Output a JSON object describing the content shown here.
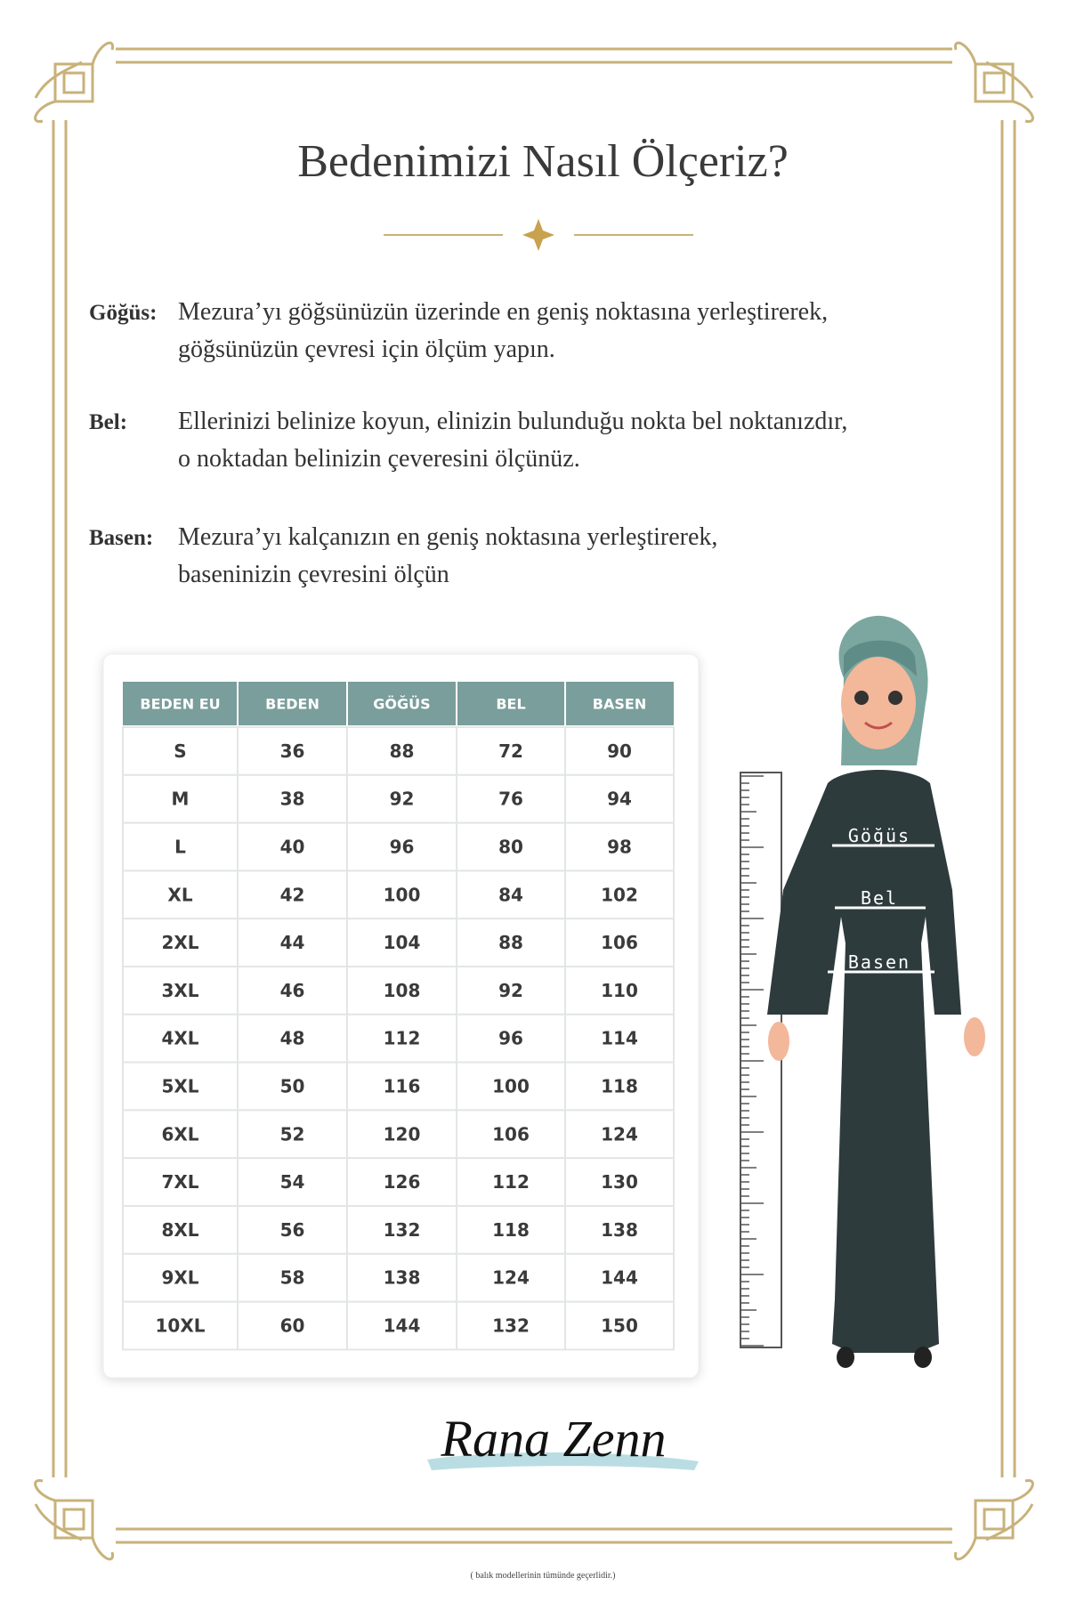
{
  "title": "Bedenimizi Nasıl Ölçeriz?",
  "definitions": [
    {
      "term": "Göğüs:",
      "lines": [
        "Mezura’yı göğsünüzün üzerinde en geniş noktasına yerleştirerek,",
        "göğsünüzün çevresi için ölçüm yapın."
      ]
    },
    {
      "term": "Bel:",
      "lines": [
        "Ellerinizi belinize koyun, elinizin bulunduğu nokta bel noktanızdır,",
        "o noktadan belinizin çeveresini ölçünüz."
      ]
    },
    {
      "term": "Basen:",
      "lines": [
        "Mezura’yı kalçanızın en geniş noktasına yerleştirerek,",
        "baseninizin çevresini ölçün"
      ]
    }
  ],
  "table": {
    "headers": [
      "BEDEN EU",
      "BEDEN",
      "GÖĞÜS",
      "BEL",
      "BASEN"
    ],
    "rows": [
      [
        "S",
        "36",
        "88",
        "72",
        "90"
      ],
      [
        "M",
        "38",
        "92",
        "76",
        "94"
      ],
      [
        "L",
        "40",
        "96",
        "80",
        "98"
      ],
      [
        "XL",
        "42",
        "100",
        "84",
        "102"
      ],
      [
        "2XL",
        "44",
        "104",
        "88",
        "106"
      ],
      [
        "3XL",
        "46",
        "108",
        "92",
        "110"
      ],
      [
        "4XL",
        "48",
        "112",
        "96",
        "114"
      ],
      [
        "5XL",
        "50",
        "116",
        "100",
        "118"
      ],
      [
        "6XL",
        "52",
        "120",
        "106",
        "124"
      ],
      [
        "7XL",
        "54",
        "126",
        "112",
        "130"
      ],
      [
        "8XL",
        "56",
        "132",
        "118",
        "138"
      ],
      [
        "9XL",
        "58",
        "138",
        "124",
        "144"
      ],
      [
        "10XL",
        "60",
        "144",
        "132",
        "150"
      ]
    ]
  },
  "figure": {
    "labels": [
      "Göğüs",
      "Bel",
      "Basen"
    ]
  },
  "brand": "Rana Zenn",
  "footnote": "( balık modellerinin tümünde geçerlidir.)"
}
